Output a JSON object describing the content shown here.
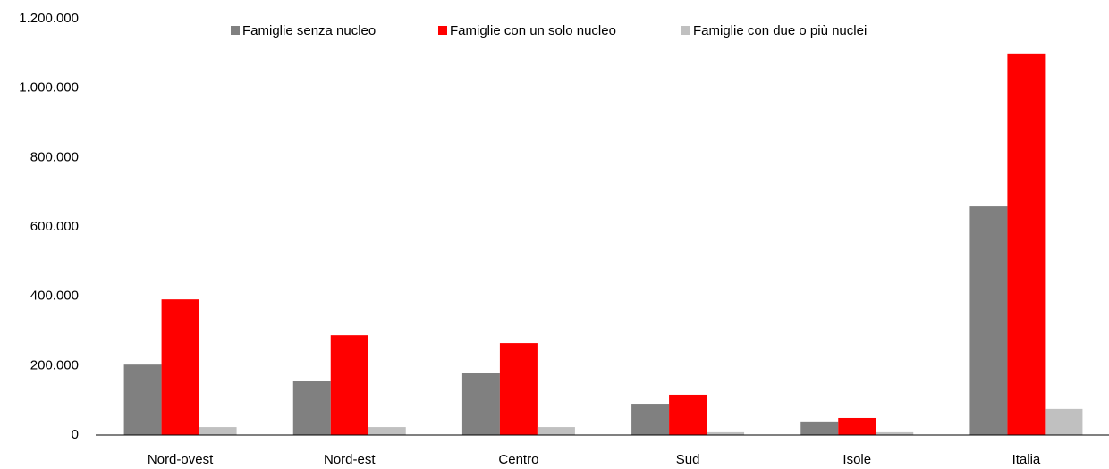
{
  "chart_data": {
    "type": "bar",
    "categories": [
      "Nord-ovest",
      "Nord-est",
      "Centro",
      "Sud",
      "Isole",
      "Italia"
    ],
    "series": [
      {
        "name": "Famiglie senza nucleo",
        "color": "#808080",
        "values": [
          203000,
          157000,
          178000,
          90000,
          39000,
          659000
        ]
      },
      {
        "name": "Famiglie con un solo nucleo",
        "color": "#ff0000",
        "values": [
          391000,
          288000,
          265000,
          116000,
          49000,
          1100000
        ]
      },
      {
        "name": "Famiglie con due o più nuclei",
        "color": "#c0c0c0",
        "values": [
          23000,
          23000,
          23000,
          8000,
          8000,
          75000
        ]
      }
    ],
    "ylim": [
      0,
      1200000
    ],
    "yticks": [
      0,
      {
        "value": 200000,
        "label": "200.000"
      },
      {
        "value": 400000,
        "label": "400.000"
      },
      {
        "value": 600000,
        "label": "600.000"
      },
      {
        "value": 800000,
        "label": "800.000"
      },
      {
        "value": 1000000,
        "label": "1.000.000"
      },
      {
        "value": 1200000,
        "label": "1.200.000"
      }
    ],
    "grid": false,
    "legend": "top"
  }
}
